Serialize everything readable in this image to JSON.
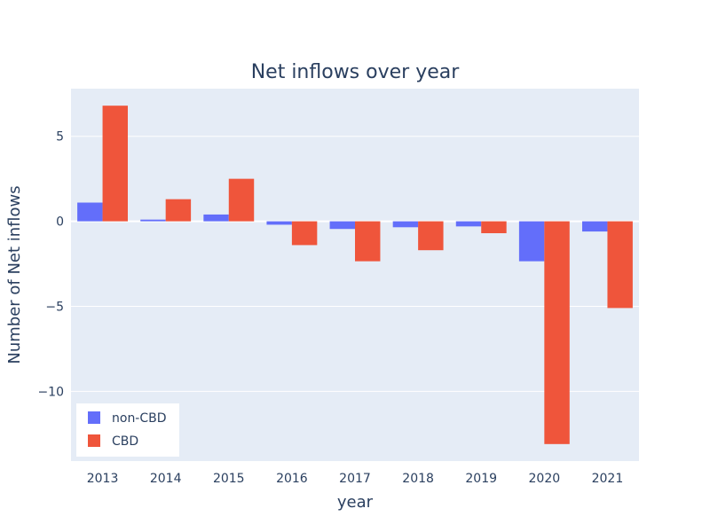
{
  "chart_data": {
    "type": "bar",
    "title": "Net inflows over year",
    "xlabel": "year",
    "ylabel": "Number of Net inflows",
    "categories": [
      "2013",
      "2014",
      "2015",
      "2016",
      "2017",
      "2018",
      "2019",
      "2020",
      "2021"
    ],
    "series": [
      {
        "name": "non-CBD",
        "color": "#636efa",
        "values": [
          1.1,
          0.1,
          0.4,
          -0.2,
          -0.45,
          -0.35,
          -0.3,
          -2.35,
          -0.6
        ]
      },
      {
        "name": "CBD",
        "color": "#ef553b",
        "values": [
          6.8,
          1.3,
          2.5,
          -1.4,
          -2.35,
          -1.7,
          -0.7,
          -13.1,
          -5.1
        ]
      }
    ],
    "ylim": [
      -14.1,
      7.8
    ],
    "yticks": [
      5,
      0,
      -5,
      -10
    ],
    "ytick_labels": [
      "5",
      "0",
      "−5",
      "−10"
    ],
    "grid": true,
    "legend_position": "bottom-left",
    "plot_background": "#e5ecf6"
  }
}
